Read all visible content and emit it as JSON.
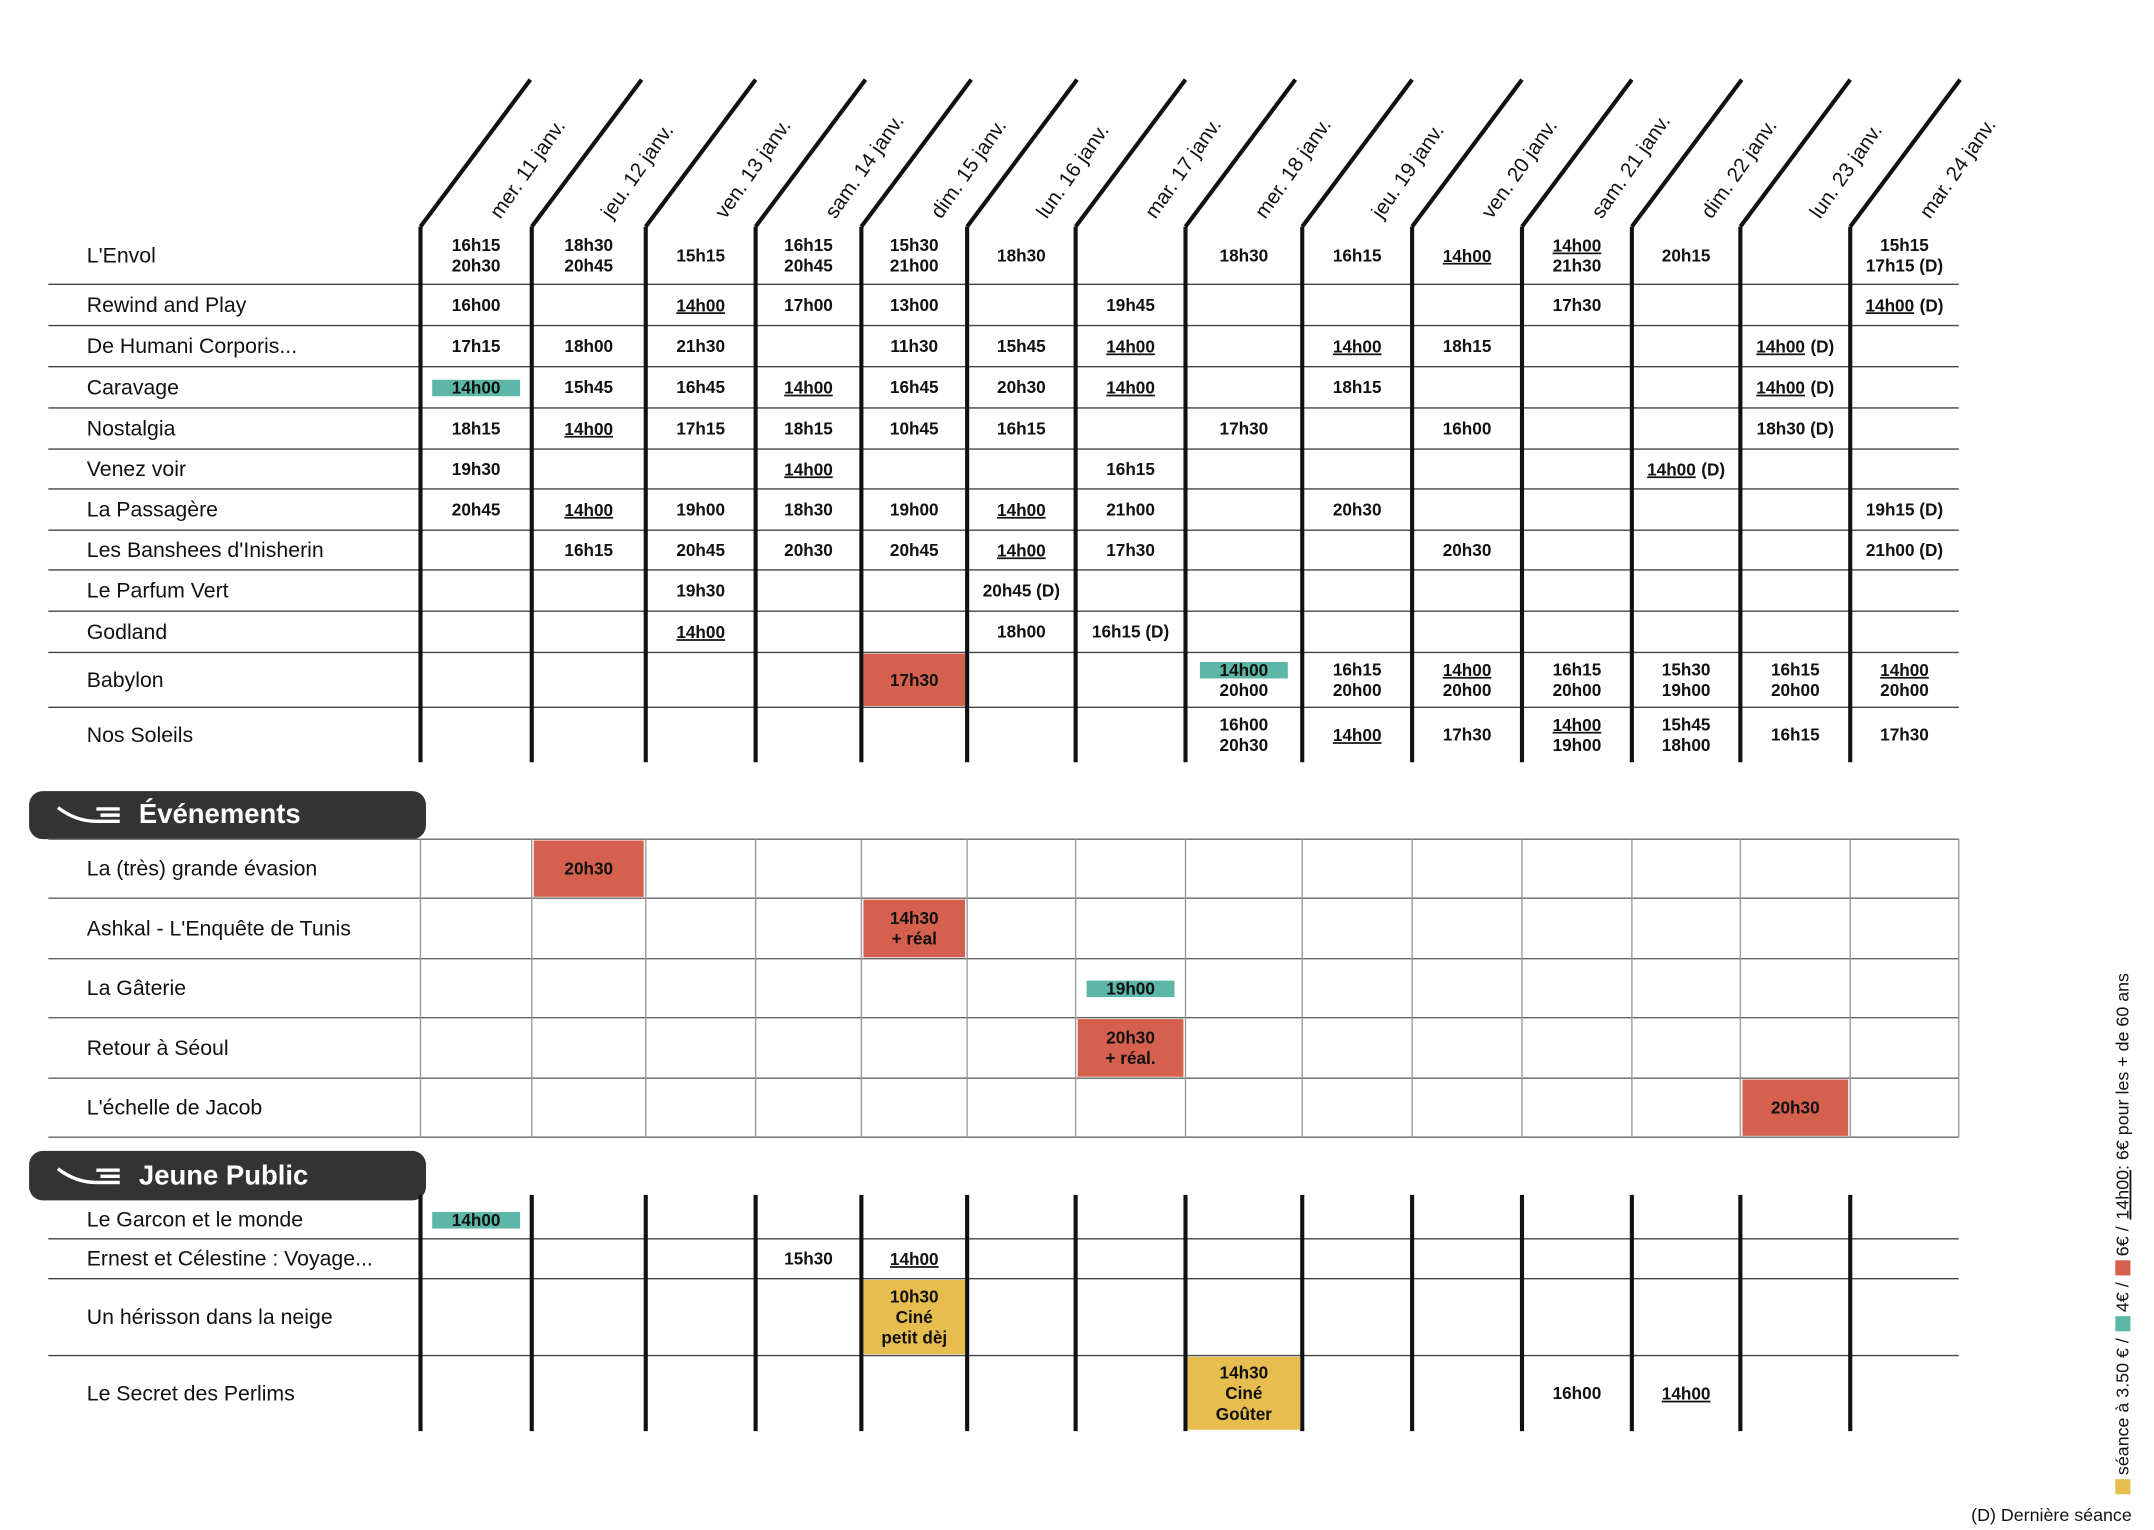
{
  "days": [
    "mer. 11 janv.",
    "jeu. 12 janv.",
    "ven. 13 janv.",
    "sam. 14 janv.",
    "dim. 15 janv.",
    "lun. 16 janv.",
    "mar. 17 janv.",
    "mer. 18 janv.",
    "jeu. 19 janv.",
    "ven. 20 janv.",
    "sam. 21 janv.",
    "dim. 22 janv.",
    "lun. 23 janv.",
    "mar. 24 janv."
  ],
  "films": {
    "rows": [
      {
        "title": "L'Envol",
        "cells": [
          [
            "16h15",
            "20h30"
          ],
          [
            "18h30",
            "20h45"
          ],
          [
            "15h15"
          ],
          [
            "16h15",
            "20h45"
          ],
          [
            "15h30",
            "21h00"
          ],
          [
            "18h30"
          ],
          null,
          [
            "18h30"
          ],
          [
            "16h15"
          ],
          [
            {
              "text": "14h00",
              "underline": true
            }
          ],
          [
            {
              "text": "14h00",
              "underline": true
            },
            "21h30"
          ],
          [
            "20h15"
          ],
          null,
          [
            "15h15",
            "17h15 (D)"
          ]
        ]
      },
      {
        "title": "Rewind and Play",
        "cells": [
          [
            "16h00"
          ],
          null,
          [
            {
              "text": "14h00",
              "underline": true
            }
          ],
          [
            "17h00"
          ],
          [
            "13h00"
          ],
          null,
          [
            "19h45"
          ],
          null,
          null,
          null,
          [
            "17h30"
          ],
          null,
          null,
          [
            {
              "text": "14h00",
              "underline": true,
              "after": "(D)"
            }
          ]
        ]
      },
      {
        "title": "De Humani Corporis...",
        "cells": [
          [
            "17h15"
          ],
          [
            "18h00"
          ],
          [
            "21h30"
          ],
          null,
          [
            "11h30"
          ],
          [
            "15h45"
          ],
          [
            {
              "text": "14h00",
              "underline": true
            }
          ],
          null,
          [
            {
              "text": "14h00",
              "underline": true
            }
          ],
          [
            "18h15"
          ],
          null,
          null,
          [
            {
              "text": "14h00",
              "underline": true,
              "after": "(D)"
            }
          ],
          null
        ]
      },
      {
        "title": "Caravage",
        "cells": [
          [
            {
              "text": "14h00",
              "highlight": "#5db7a6"
            }
          ],
          [
            "15h45"
          ],
          [
            "16h45"
          ],
          [
            {
              "text": "14h00",
              "underline": true
            }
          ],
          [
            "16h45"
          ],
          [
            "20h30"
          ],
          [
            {
              "text": "14h00",
              "underline": true
            }
          ],
          null,
          [
            "18h15"
          ],
          null,
          null,
          null,
          [
            {
              "text": "14h00",
              "underline": true,
              "after": "(D)"
            }
          ],
          null
        ]
      },
      {
        "title": "Nostalgia",
        "cells": [
          [
            "18h15"
          ],
          [
            {
              "text": "14h00",
              "underline": true
            }
          ],
          [
            "17h15"
          ],
          [
            "18h15"
          ],
          [
            "10h45"
          ],
          [
            "16h15"
          ],
          null,
          [
            "17h30"
          ],
          null,
          [
            "16h00"
          ],
          null,
          null,
          [
            "18h30 (D)"
          ],
          null
        ]
      },
      {
        "title": "Venez voir",
        "cells": [
          [
            "19h30"
          ],
          null,
          null,
          [
            {
              "text": "14h00",
              "underline": true
            }
          ],
          null,
          null,
          [
            "16h15"
          ],
          null,
          null,
          null,
          null,
          [
            {
              "text": "14h00",
              "underline": true,
              "after": "(D)"
            }
          ],
          null,
          null
        ]
      },
      {
        "title": "La Passagère",
        "cells": [
          [
            "20h45"
          ],
          [
            {
              "text": "14h00",
              "underline": true
            }
          ],
          [
            "19h00"
          ],
          [
            "18h30"
          ],
          [
            "19h00"
          ],
          [
            {
              "text": "14h00",
              "underline": true
            }
          ],
          [
            "21h00"
          ],
          null,
          [
            "20h30"
          ],
          null,
          null,
          null,
          null,
          [
            "19h15 (D)"
          ]
        ]
      },
      {
        "title": "Les Banshees d'Inisherin",
        "cells": [
          null,
          [
            "16h15"
          ],
          [
            "20h45"
          ],
          [
            "20h30"
          ],
          [
            "20h45"
          ],
          [
            {
              "text": "14h00",
              "underline": true
            }
          ],
          [
            "17h30"
          ],
          null,
          null,
          [
            "20h30"
          ],
          null,
          null,
          null,
          [
            "21h00 (D)"
          ]
        ]
      },
      {
        "title": "Le Parfum Vert",
        "cells": [
          null,
          null,
          [
            "19h30"
          ],
          null,
          null,
          [
            "20h45 (D)"
          ],
          null,
          null,
          null,
          null,
          null,
          null,
          null,
          null
        ]
      },
      {
        "title": "Godland",
        "cells": [
          null,
          null,
          [
            {
              "text": "14h00",
              "underline": true
            }
          ],
          null,
          null,
          [
            "18h00"
          ],
          [
            "16h15 (D)"
          ],
          null,
          null,
          null,
          null,
          null,
          null,
          null
        ]
      },
      {
        "title": "Babylon",
        "cells": [
          null,
          null,
          null,
          null,
          {
            "lines": [
              "17h30"
            ],
            "fill": "#d5604d"
          },
          null,
          null,
          [
            {
              "text": "14h00",
              "highlight": "#5db7a6"
            },
            "20h00"
          ],
          [
            "16h15",
            "20h00"
          ],
          [
            {
              "text": "14h00",
              "underline": true
            },
            "20h00"
          ],
          [
            "16h15",
            "20h00"
          ],
          [
            "15h30",
            "19h00"
          ],
          [
            "16h15",
            "20h00"
          ],
          [
            {
              "text": "14h00",
              "underline": true
            },
            "20h00"
          ]
        ]
      },
      {
        "title": "Nos Soleils",
        "cells": [
          null,
          null,
          null,
          null,
          null,
          null,
          null,
          [
            "16h00",
            "20h30"
          ],
          [
            {
              "text": "14h00",
              "underline": true
            }
          ],
          [
            "17h30"
          ],
          [
            {
              "text": "14h00",
              "underline": true
            },
            "19h00"
          ],
          [
            "15h45",
            "18h00"
          ],
          [
            "16h15"
          ],
          [
            "17h30"
          ]
        ]
      }
    ]
  },
  "events": {
    "title": "Événements",
    "rows": [
      {
        "title": "La (très) grande évasion",
        "cells": [
          null,
          {
            "lines": [
              "20h30"
            ],
            "fill": "#d5604d"
          },
          null,
          null,
          null,
          null,
          null,
          null,
          null,
          null,
          null,
          null,
          null,
          null
        ]
      },
      {
        "title": "Ashkal - L'Enquête de Tunis",
        "cells": [
          null,
          null,
          null,
          null,
          {
            "lines": [
              "14h30",
              "+ réal"
            ],
            "fill": "#d5604d"
          },
          null,
          null,
          null,
          null,
          null,
          null,
          null,
          null,
          null
        ]
      },
      {
        "title": "La Gâterie",
        "cells": [
          null,
          null,
          null,
          null,
          null,
          null,
          [
            {
              "text": "19h00",
              "highlight": "#5db7a6"
            }
          ],
          null,
          null,
          null,
          null,
          null,
          null,
          null
        ]
      },
      {
        "title": "Retour à Séoul",
        "cells": [
          null,
          null,
          null,
          null,
          null,
          null,
          {
            "lines": [
              "20h30",
              "+ réal."
            ],
            "fill": "#d5604d"
          },
          null,
          null,
          null,
          null,
          null,
          null,
          null
        ]
      },
      {
        "title": "L'échelle de Jacob",
        "cells": [
          null,
          null,
          null,
          null,
          null,
          null,
          null,
          null,
          null,
          null,
          null,
          null,
          {
            "lines": [
              "20h30"
            ],
            "fill": "#d5604d"
          },
          null
        ]
      }
    ]
  },
  "jeune_public": {
    "title": "Jeune Public",
    "rows": [
      {
        "title": "Le Garcon et le monde",
        "cells": [
          [
            {
              "text": "14h00",
              "highlight": "#5db7a6"
            }
          ],
          null,
          null,
          null,
          null,
          null,
          null,
          null,
          null,
          null,
          null,
          null,
          null,
          null
        ]
      },
      {
        "title": "Ernest et Célestine : Voyage...",
        "cells": [
          null,
          null,
          null,
          [
            "15h30"
          ],
          [
            {
              "text": "14h00",
              "underline": true
            }
          ],
          null,
          null,
          null,
          null,
          null,
          null,
          null,
          null,
          null
        ]
      },
      {
        "title": "Un hérisson dans la neige",
        "cells": [
          null,
          null,
          null,
          null,
          {
            "lines": [
              "10h30",
              "Ciné",
              "petit dèj"
            ],
            "fill": "#e8bd4f"
          },
          null,
          null,
          null,
          null,
          null,
          null,
          null,
          null,
          null
        ]
      },
      {
        "title": "Le Secret des Perlims",
        "cells": [
          null,
          null,
          null,
          null,
          null,
          null,
          null,
          {
            "lines": [
              "14h30",
              "Ciné",
              "Goûter"
            ],
            "fill": "#e8bd4f"
          },
          null,
          null,
          [
            "16h00"
          ],
          [
            {
              "text": "14h00",
              "underline": true
            }
          ],
          null,
          null
        ]
      }
    ]
  },
  "legend": {
    "items": [
      {
        "color": "#e8bd4f",
        "text": "séance à 3.50 € /"
      },
      {
        "color": "#5db7a6",
        "text": "4€ /"
      },
      {
        "color": "#d5604d",
        "text": "6€ /"
      }
    ],
    "underlined": "14h00",
    "note": ": 6€ pour les + de 60 ans",
    "last_show": "(D) Dernière séance"
  }
}
